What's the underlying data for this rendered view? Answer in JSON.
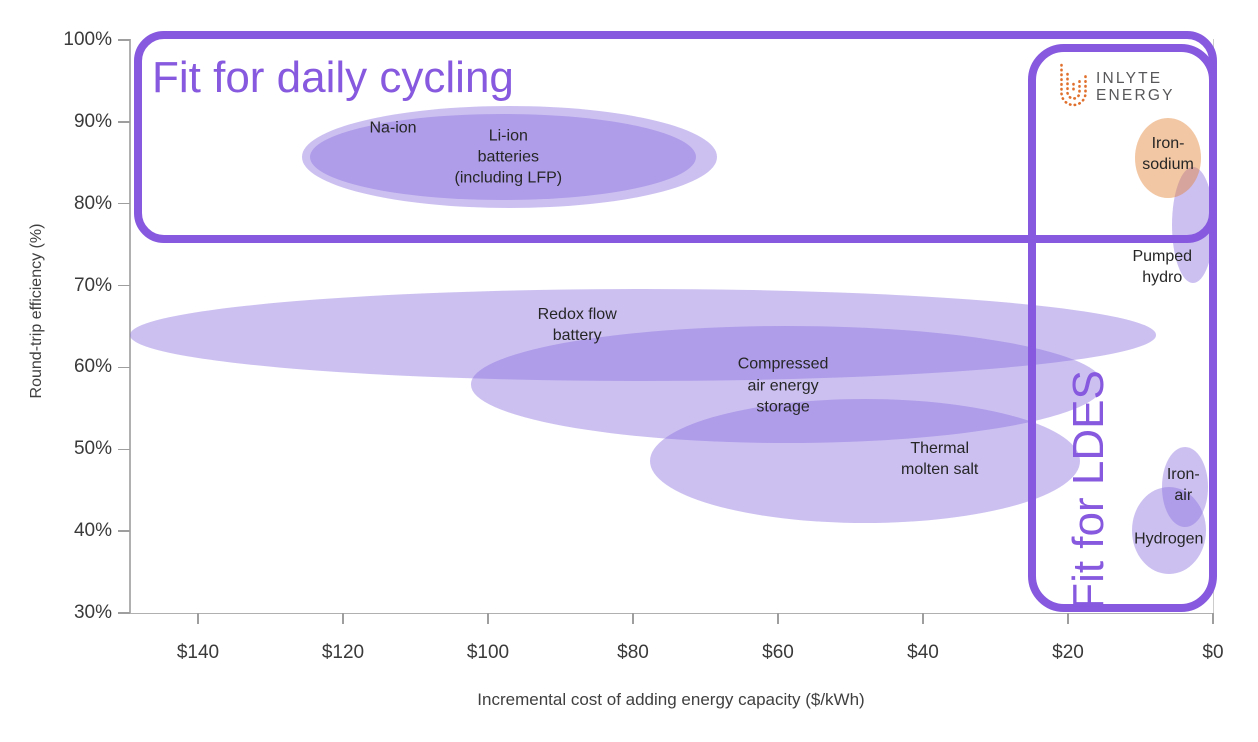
{
  "logo": {
    "line1": "INLYTE",
    "line2": "ENERGY",
    "icon": "inlyte-nested-u-arcs-icon",
    "icon_color": "#E0702D",
    "text_color": "#58585A"
  },
  "annotations": {
    "accent_color": "#8659DE",
    "daily_cycling_box": {
      "label": "Fit for daily cycling"
    },
    "ldes_box": {
      "label": "Fit for LDES"
    }
  },
  "chart_data": {
    "type": "scatter",
    "title": "",
    "xlabel": "Incremental cost of adding energy capacity ($/kWh)",
    "ylabel": "Round-trip efficiency (%)",
    "x_axis": {
      "unit": "$/kWh",
      "reversed": true,
      "min": 0,
      "max": 149.4,
      "ticks": [
        {
          "value": 140,
          "label": "$140"
        },
        {
          "value": 120,
          "label": "$120"
        },
        {
          "value": 100,
          "label": "$100"
        },
        {
          "value": 80,
          "label": "$80"
        },
        {
          "value": 60,
          "label": "$60"
        },
        {
          "value": 40,
          "label": "$40"
        },
        {
          "value": 20,
          "label": "$20"
        },
        {
          "value": 0,
          "label": "$0"
        }
      ]
    },
    "y_axis": {
      "unit": "%",
      "min": 30,
      "max": 100,
      "ticks": [
        {
          "value": 100,
          "label": "100%"
        },
        {
          "value": 90,
          "label": "90%"
        },
        {
          "value": 80,
          "label": "80%"
        },
        {
          "value": 70,
          "label": "70%"
        },
        {
          "value": 60,
          "label": "60%"
        },
        {
          "value": 50,
          "label": "50%"
        },
        {
          "value": 40,
          "label": "40%"
        },
        {
          "value": 30,
          "label": "30%"
        }
      ]
    },
    "colors": {
      "purple": "rgba(138,111,224,0.44)",
      "orange": "rgba(226,131,53,0.45)"
    },
    "grid": false,
    "legend": false,
    "ellipses": [
      {
        "name": "redox-flow-battery",
        "label": "Redox flow\nbattery",
        "fill": "purple",
        "cost": 78.6,
        "efficiency": 64.0,
        "cost_radius": 70.8,
        "efficiency_radius": 5.6,
        "label_cost": 87.7,
        "label_efficiency": 65.2
      },
      {
        "name": "compressed-air-energy-storage",
        "label": "Compressed\nair energy\nstorage",
        "fill": "purple",
        "cost": 58.8,
        "efficiency": 57.9,
        "cost_radius": 43.6,
        "efficiency_radius": 7.1,
        "label_cost": 59.3,
        "label_efficiency": 57.8
      },
      {
        "name": "thermal-molten-salt",
        "label": "Thermal\nmolten salt",
        "fill": "purple",
        "cost": 48.0,
        "efficiency": 48.6,
        "cost_radius": 29.7,
        "efficiency_radius": 7.6,
        "label_cost": 37.7,
        "label_efficiency": 48.8
      },
      {
        "name": "na-ion",
        "label": "Na-ion",
        "fill": "purple",
        "cost": 97.0,
        "efficiency": 85.7,
        "cost_radius": 28.6,
        "efficiency_radius": 6.2,
        "label_cost": 113.1,
        "label_efficiency": 89.2
      },
      {
        "name": "li-ion-batteries",
        "label": "Li-ion\nbatteries\n(including LFP)",
        "fill": "purple",
        "cost": 97.9,
        "efficiency": 85.7,
        "cost_radius": 26.6,
        "efficiency_radius": 5.3,
        "label_cost": 97.2,
        "label_efficiency": 85.7
      },
      {
        "name": "pumped-hydro",
        "label": "Pumped\nhydro",
        "fill": "purple",
        "cost": 2.8,
        "efficiency": 77.4,
        "cost_radius": 2.9,
        "efficiency_radius": 7.1,
        "label_cost": 7.0,
        "label_efficiency": 72.3
      },
      {
        "name": "iron-sodium",
        "label": "Iron-\nsodium",
        "fill": "orange",
        "cost": 6.2,
        "efficiency": 85.6,
        "cost_radius": 4.6,
        "efficiency_radius": 4.9,
        "label_cost": 6.2,
        "label_efficiency": 86.1
      },
      {
        "name": "iron-air",
        "label": "Iron-\nair",
        "fill": "purple",
        "cost": 3.9,
        "efficiency": 45.4,
        "cost_radius": 3.2,
        "efficiency_radius": 4.9,
        "label_cost": 4.1,
        "label_efficiency": 45.6
      },
      {
        "name": "hydrogen",
        "label": "Hydrogen",
        "fill": "purple",
        "cost": 6.1,
        "efficiency": 40.1,
        "cost_radius": 5.1,
        "efficiency_radius": 5.3,
        "label_cost": 6.1,
        "label_efficiency": 39.0
      }
    ]
  }
}
